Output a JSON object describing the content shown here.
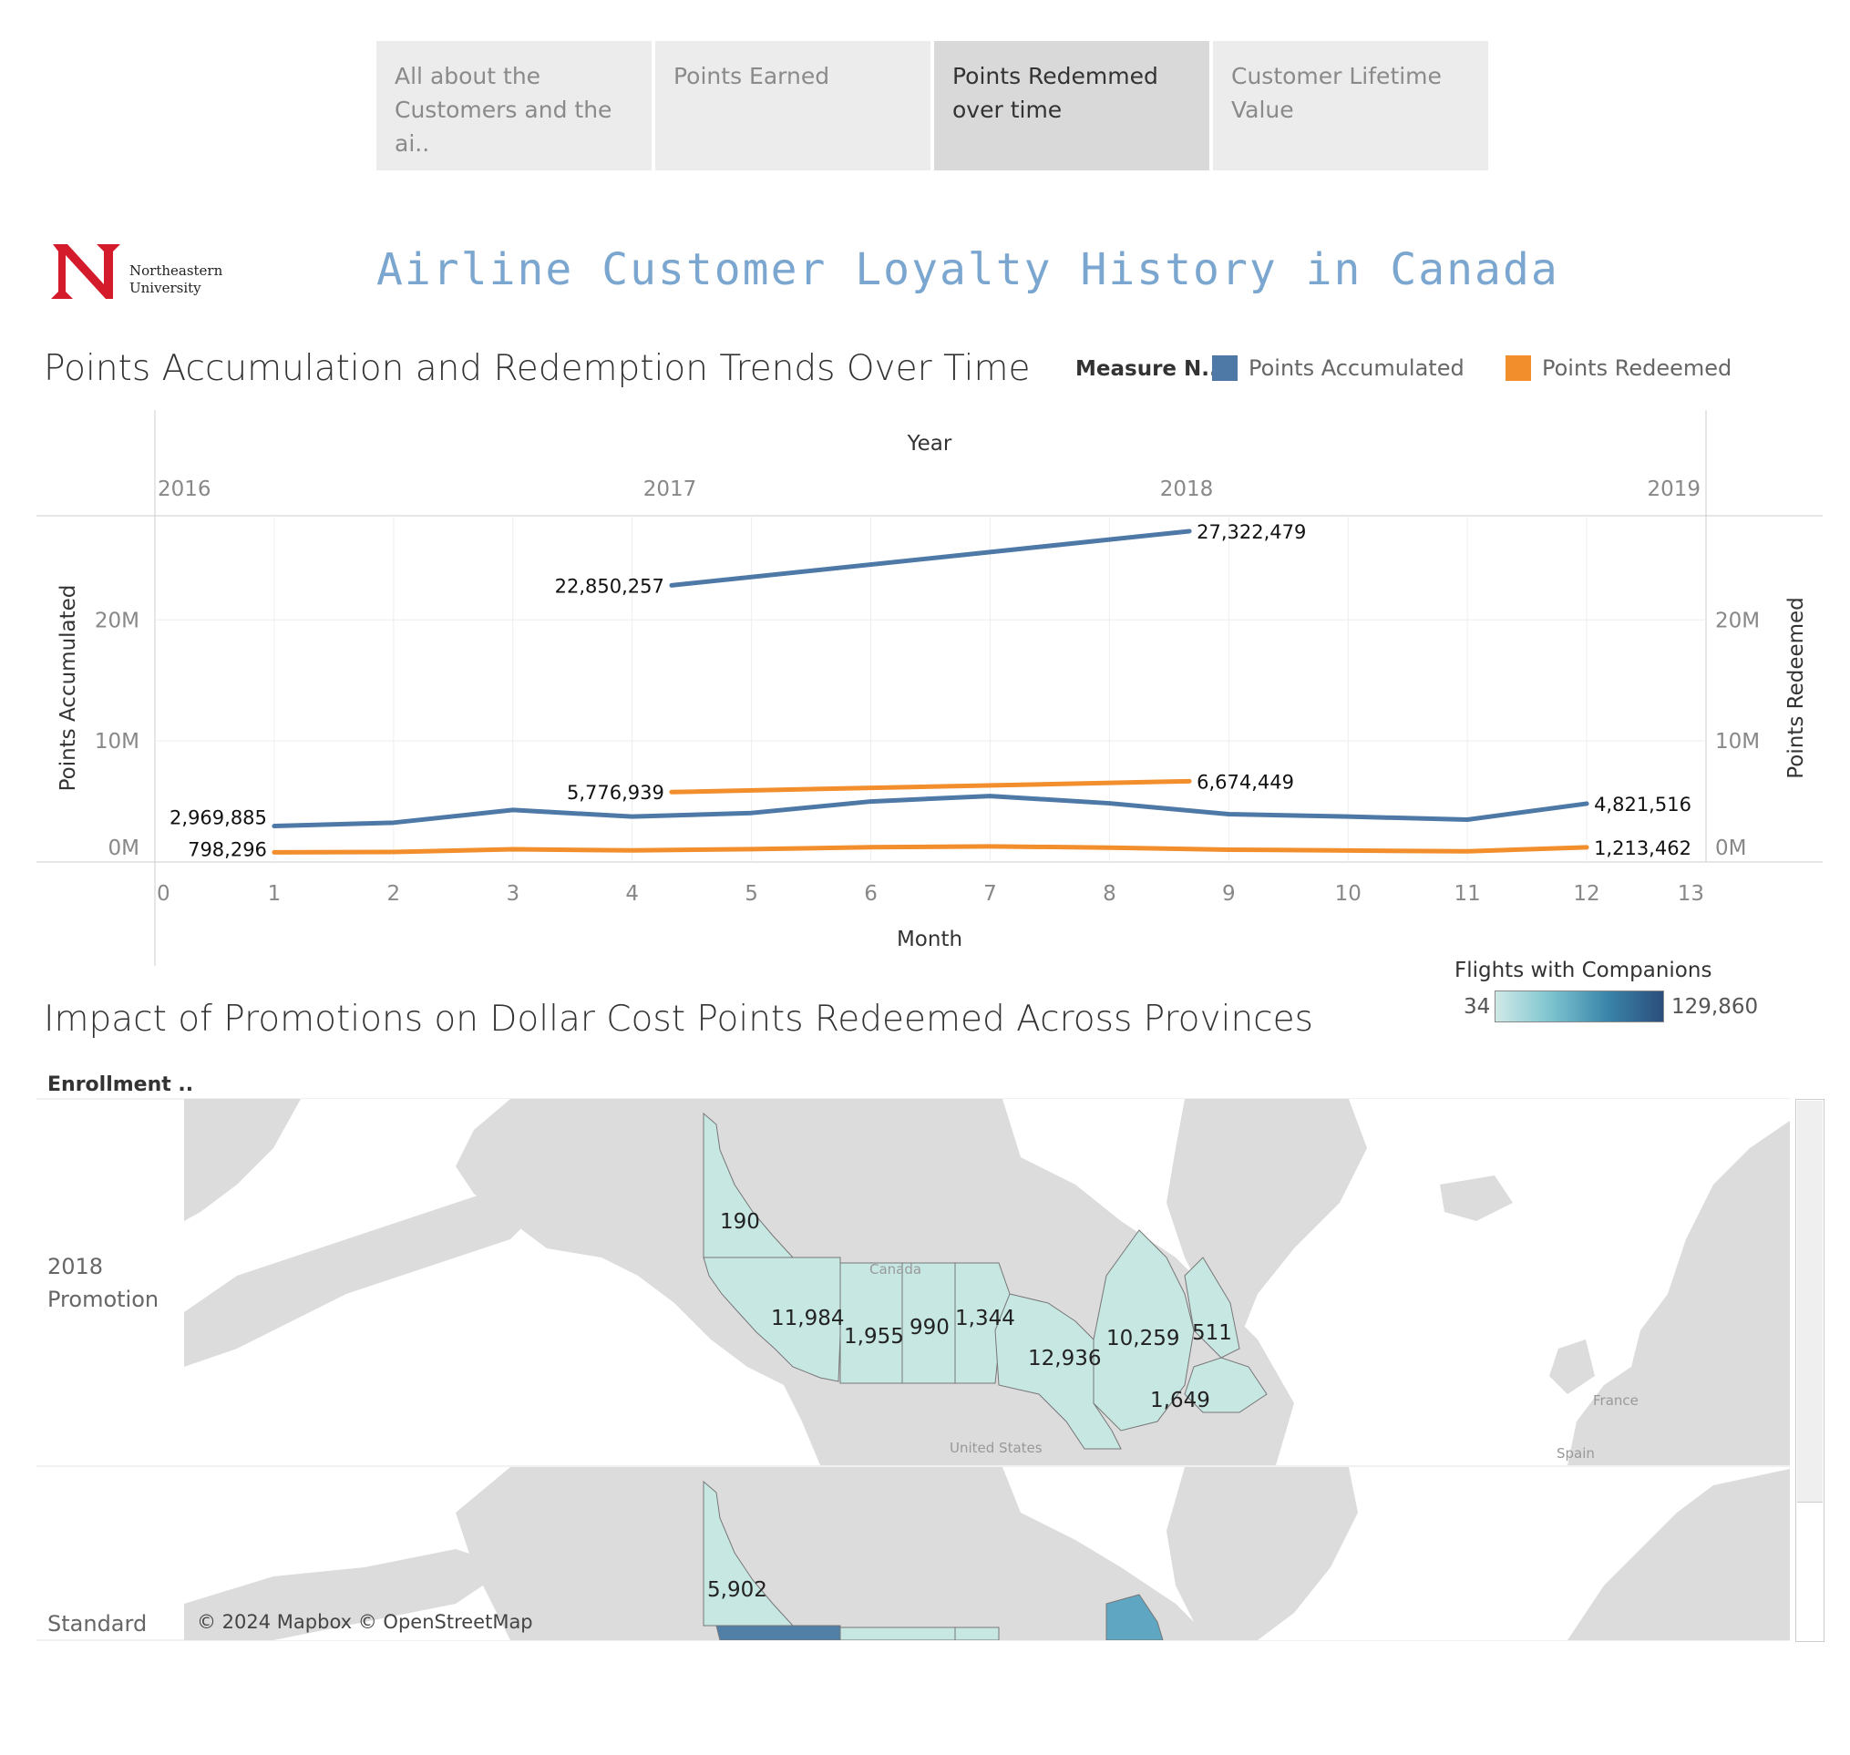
{
  "tabs": [
    {
      "label": "All about the Customers and the ai..",
      "active": false
    },
    {
      "label": "Points Earned",
      "active": false
    },
    {
      "label": "Points Redemmed over time",
      "active": true
    },
    {
      "label": "Customer Lifetime Value",
      "active": false
    }
  ],
  "logo": {
    "line1": "Northeastern",
    "line2": "University",
    "letter": "N",
    "color": "#d41b2c"
  },
  "title": "Airline Customer Loyalty History in Canada",
  "chart1": {
    "title": "Points Accumulation and Redemption Trends Over Time",
    "legend_title": "Measure N..",
    "legend": [
      {
        "name": "Points Accumulated",
        "color": "#4e79a7"
      },
      {
        "name": "Points Redeemed",
        "color": "#f28e2b"
      }
    ]
  },
  "chart_data": [
    {
      "type": "line",
      "title": "Points Accumulation and Redemption Trends Over Time",
      "xlabel": "Month",
      "ylabel": "Points Accumulated",
      "y2label": "Points Redeemed",
      "top_axis_label": "Year",
      "top_axis_ticks": [
        "2016",
        "2017",
        "2018",
        "2019"
      ],
      "x_ticks": [
        "0",
        "1",
        "2",
        "3",
        "4",
        "5",
        "6",
        "7",
        "8",
        "9",
        "10",
        "11",
        "12",
        "13"
      ],
      "xlim": [
        0,
        13
      ],
      "ylim": [
        0,
        27000000
      ],
      "y_ticks": [
        "0M",
        "10M",
        "20M"
      ],
      "grid": true,
      "legend_position": "top-right",
      "series": [
        {
          "name": "Points Accumulated",
          "color": "#4e79a7",
          "x": [
            1,
            2,
            3,
            4,
            5,
            6,
            7,
            8,
            9,
            10,
            11,
            12
          ],
          "values": [
            2969885,
            3250000,
            4300000,
            3750000,
            4050000,
            5000000,
            5450000,
            4850000,
            3950000,
            3750000,
            3500000,
            4821516
          ],
          "labels": {
            "0": "2,969,885",
            "11": "4,821,516"
          }
        },
        {
          "name": "Points Redeemed",
          "color": "#f28e2b",
          "x": [
            1,
            2,
            3,
            4,
            5,
            6,
            7,
            8,
            9,
            10,
            11,
            12
          ],
          "values": [
            798296,
            830000,
            1050000,
            960000,
            1060000,
            1220000,
            1290000,
            1190000,
            1020000,
            950000,
            880000,
            1213462
          ],
          "labels": {
            "0": "798,296",
            "11": "1,213,462"
          }
        },
        {
          "name": "Points Accumulated",
          "color": "#4e79a7",
          "x": [
            4.33,
            8.67
          ],
          "values": [
            22850257,
            27322479
          ],
          "labels": {
            "0": "22,850,257",
            "1": "27,322,479"
          }
        },
        {
          "name": "Points Redeemed",
          "color": "#f28e2b",
          "x": [
            4.33,
            8.67
          ],
          "values": [
            5776939,
            6674449
          ],
          "labels": {
            "0": "5,776,939",
            "1": "6,674,449"
          }
        }
      ]
    },
    {
      "type": "heatmap",
      "title": "Impact of Promotions on Dollar Cost Points Redeemed Across Provinces",
      "row_header": "Enrollment ..",
      "color_legend": {
        "title": "Flights with Companions",
        "min": "34",
        "max": "129,860"
      },
      "rows": [
        {
          "label": [
            "2018",
            "Promotion"
          ],
          "labels": [
            "190",
            "11,984",
            "1,955",
            "990",
            "1,344",
            "12,936",
            "10,259",
            "511",
            "1,649"
          ]
        },
        {
          "label": [
            "Standard"
          ],
          "labels": [
            "5,902"
          ]
        }
      ]
    }
  ],
  "map": {
    "place_labels": [
      "Canada",
      "United States",
      "France",
      "Spain"
    ],
    "attribution": "© 2024 Mapbox © OpenStreetMap"
  }
}
